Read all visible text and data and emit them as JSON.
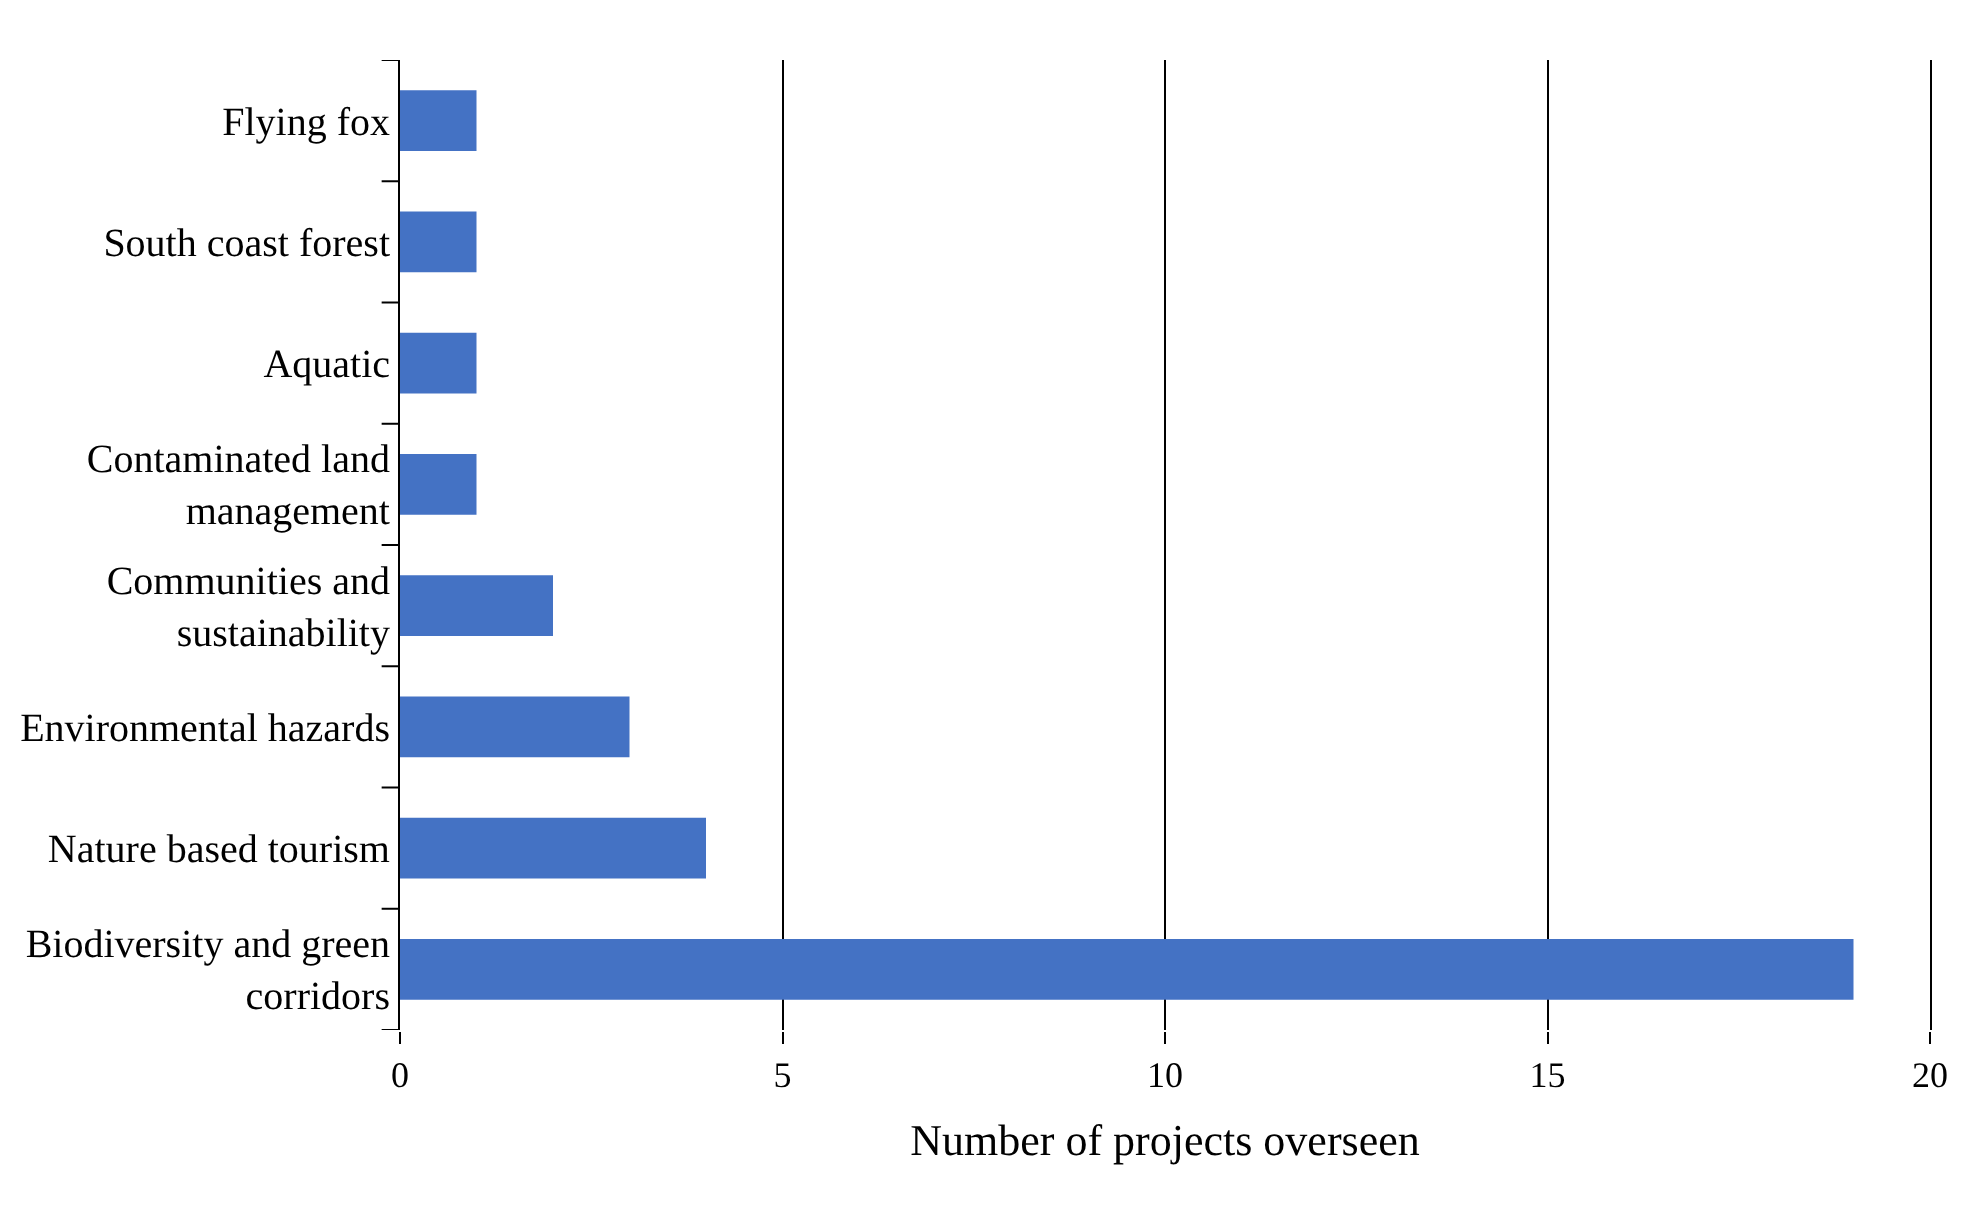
{
  "chart_data": {
    "type": "bar",
    "orientation": "horizontal",
    "xlabel": "Number of projects overseen",
    "categories": [
      "Flying fox",
      "South coast forest",
      "Aquatic",
      "Contaminated land management",
      "Communities and sustainability",
      "Environmental hazards",
      "Nature based tourism",
      "Biodiversity and green corridors"
    ],
    "values": [
      1,
      1,
      1,
      1,
      2,
      3,
      4,
      19
    ],
    "color": "#4472c4",
    "xlim": [
      0,
      20
    ],
    "xticks": [
      0,
      5,
      10,
      15,
      20
    ],
    "grid": "x"
  }
}
